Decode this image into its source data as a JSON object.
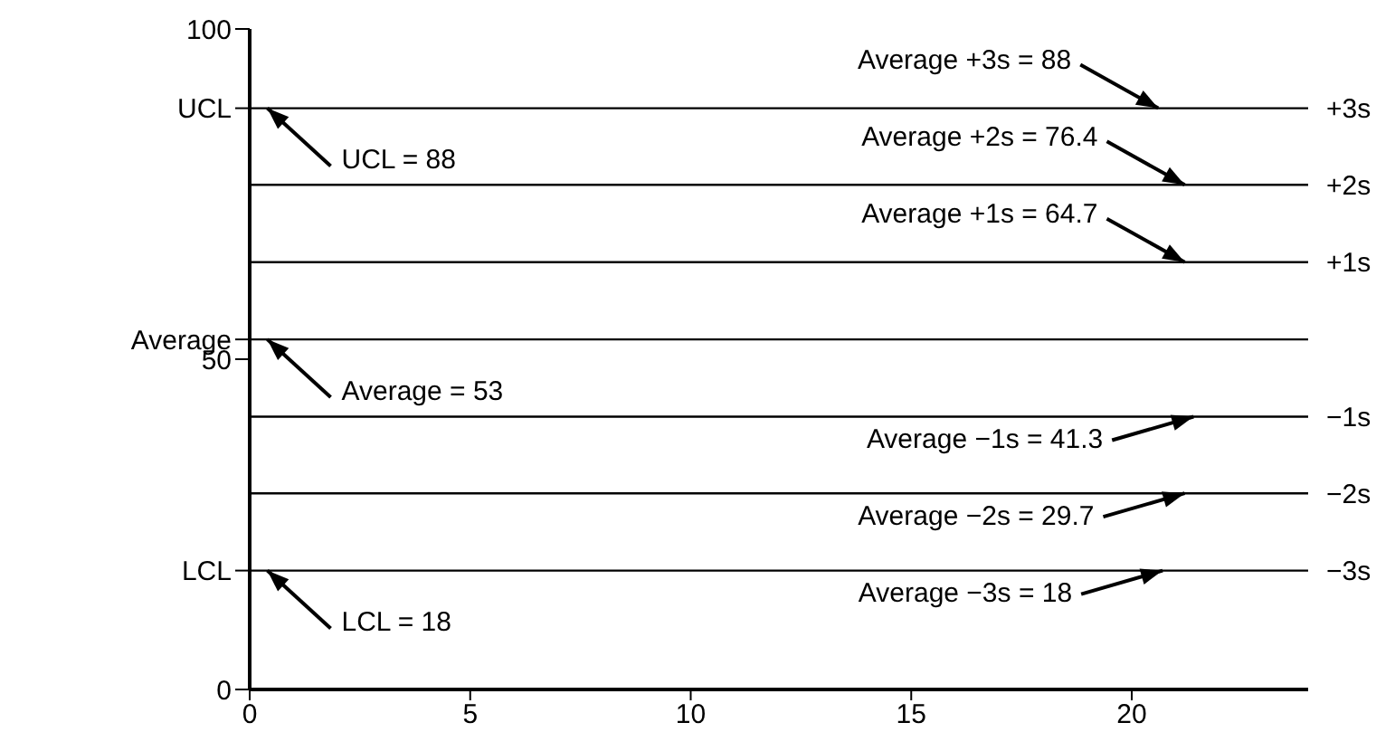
{
  "chart_data": {
    "type": "line",
    "xlim": [
      0,
      24
    ],
    "xticks": [
      0,
      5,
      10,
      15,
      20
    ],
    "ylim": [
      0,
      100
    ],
    "yticks": [
      0,
      50,
      100,
      {
        "value": 88,
        "label": "UCL"
      },
      {
        "value": 53,
        "label": "Average"
      },
      {
        "value": 18,
        "label": "LCL"
      }
    ],
    "ref_lines": [
      {
        "axis": "y",
        "value": 88,
        "label": "+3s",
        "color": "#000000"
      },
      {
        "axis": "y",
        "value": 76.4,
        "label": "+2s",
        "color": "#000000"
      },
      {
        "axis": "y",
        "value": 64.7,
        "label": "+1s",
        "color": "#000000"
      },
      {
        "axis": "y",
        "value": 53,
        "color": "#000000"
      },
      {
        "axis": "y",
        "value": 41.3,
        "label": "−1s",
        "color": "#000000"
      },
      {
        "axis": "y",
        "value": 29.7,
        "label": "−2s",
        "color": "#000000"
      },
      {
        "axis": "y",
        "value": 18,
        "label": "−3s",
        "color": "#000000"
      }
    ],
    "annotations": [
      {
        "text": "UCL = 88",
        "x": 0.4,
        "y": 88
      },
      {
        "text": "Average = 53",
        "x": 0.4,
        "y": 53
      },
      {
        "text": "LCL = 18",
        "x": 0.4,
        "y": 18
      },
      {
        "text": "Average +3s = 88",
        "x": 20.6,
        "y": 88
      },
      {
        "text": "Average +2s = 76.4",
        "x": 21.2,
        "y": 76.4
      },
      {
        "text": "Average +1s = 64.7",
        "x": 21.2,
        "y": 64.7
      },
      {
        "text": "Average −1s = 41.3",
        "x": 21.4,
        "y": 41.3
      },
      {
        "text": "Average −2s = 29.7",
        "x": 21.2,
        "y": 29.7
      },
      {
        "text": "Average −3s = 18",
        "x": 20.7,
        "y": 18
      }
    ],
    "grid": false
  }
}
